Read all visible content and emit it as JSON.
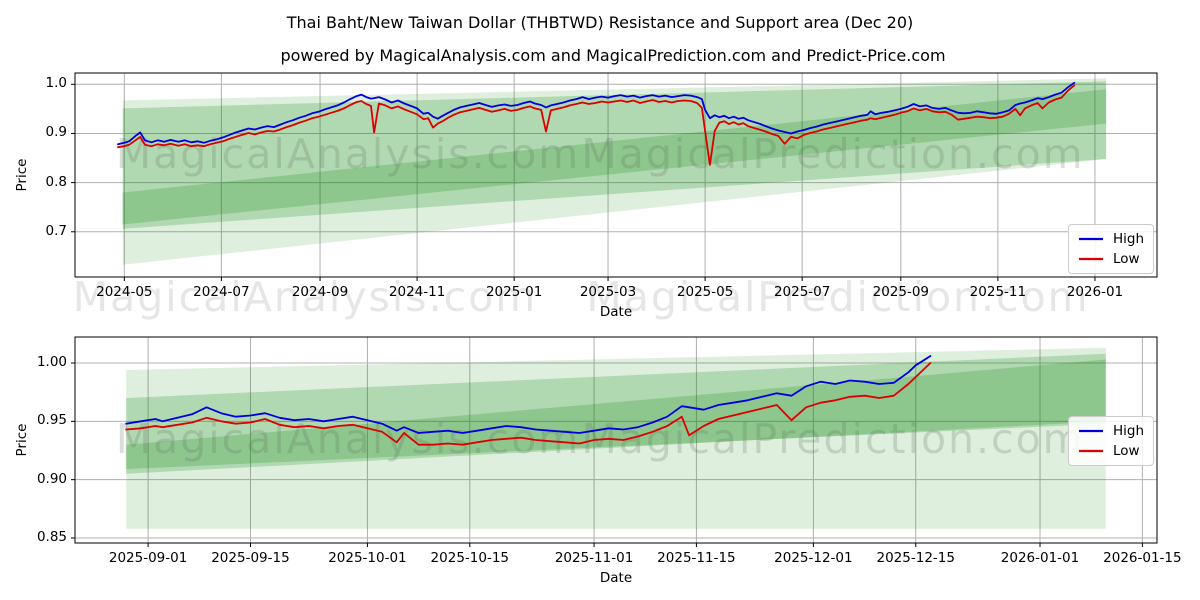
{
  "title": "Thai Baht/New Taiwan Dollar  (THBTWD) Resistance and Support area (Dec 20)",
  "subtitle": "powered by MagicalAnalysis.com and MagicalPrediction.com and Predict-Price.com",
  "watermarks": {
    "analysis": "MagicalAnalysis.com",
    "prediction": "MagicalPrediction.com"
  },
  "colors": {
    "high": "#0000dd",
    "low": "#dd0000",
    "band": "#008000",
    "grid": "#b0b0b0",
    "spine": "#000000",
    "text": "#000000"
  },
  "chart_data": [
    {
      "type": "line",
      "xlabel": "Date",
      "ylabel": "Price",
      "legend_location": "lower right",
      "grid": true,
      "x_range": [
        "2024-03-31",
        "2026-02-09"
      ],
      "y_range": [
        0.608,
        1.023
      ],
      "x_ticks": [
        {
          "date": "2024-05-01",
          "label": "2024-05"
        },
        {
          "date": "2024-07-01",
          "label": "2024-07"
        },
        {
          "date": "2024-09-01",
          "label": "2024-09"
        },
        {
          "date": "2024-11-01",
          "label": "2024-11"
        },
        {
          "date": "2025-01-01",
          "label": "2025-01"
        },
        {
          "date": "2025-03-01",
          "label": "2025-03"
        },
        {
          "date": "2025-05-01",
          "label": "2025-05"
        },
        {
          "date": "2025-07-01",
          "label": "2025-07"
        },
        {
          "date": "2025-09-01",
          "label": "2025-09"
        },
        {
          "date": "2025-11-01",
          "label": "2025-11"
        },
        {
          "date": "2026-01-01",
          "label": "2026-01"
        }
      ],
      "y_ticks": [
        {
          "value": 0.7,
          "label": "0.7"
        },
        {
          "value": 0.8,
          "label": "0.8"
        },
        {
          "value": 0.9,
          "label": "0.9"
        },
        {
          "value": 1.0,
          "label": "1.0"
        }
      ],
      "bands": [
        {
          "x0": "2024-04-30",
          "x1": "2026-01-08",
          "top": [
            0.967,
            1.012
          ],
          "bottom": [
            0.633,
            0.848
          ],
          "opacity": 0.13
        },
        {
          "x0": "2024-04-30",
          "x1": "2026-01-08",
          "top": [
            0.951,
            1.006
          ],
          "bottom": [
            0.706,
            0.848
          ],
          "opacity": 0.2
        },
        {
          "x0": "2024-04-30",
          "x1": "2026-01-08",
          "top": [
            0.78,
            0.99
          ],
          "bottom": [
            0.715,
            0.92
          ],
          "opacity": 0.2
        }
      ],
      "dates": [
        "2024-04-27",
        "2024-05-01",
        "2024-05-04",
        "2024-05-08",
        "2024-05-11",
        "2024-05-14",
        "2024-05-18",
        "2024-05-22",
        "2024-05-26",
        "2024-05-30",
        "2024-06-04",
        "2024-06-08",
        "2024-06-12",
        "2024-06-16",
        "2024-06-20",
        "2024-06-24",
        "2024-06-28",
        "2024-07-02",
        "2024-07-06",
        "2024-07-10",
        "2024-07-14",
        "2024-07-18",
        "2024-07-22",
        "2024-07-26",
        "2024-07-30",
        "2024-08-03",
        "2024-08-07",
        "2024-08-11",
        "2024-08-15",
        "2024-08-19",
        "2024-08-23",
        "2024-08-27",
        "2024-08-31",
        "2024-09-04",
        "2024-09-08",
        "2024-09-12",
        "2024-09-16",
        "2024-09-20",
        "2024-09-24",
        "2024-09-27",
        "2024-09-30",
        "2024-10-03",
        "2024-10-05",
        "2024-10-08",
        "2024-10-12",
        "2024-10-16",
        "2024-10-20",
        "2024-10-24",
        "2024-10-28",
        "2024-11-01",
        "2024-11-05",
        "2024-11-08",
        "2024-11-11",
        "2024-11-14",
        "2024-11-17",
        "2024-11-20",
        "2024-11-24",
        "2024-11-28",
        "2024-12-02",
        "2024-12-06",
        "2024-12-10",
        "2024-12-14",
        "2024-12-18",
        "2024-12-22",
        "2024-12-26",
        "2024-12-30",
        "2025-01-03",
        "2025-01-07",
        "2025-01-11",
        "2025-01-14",
        "2025-01-18",
        "2025-01-21",
        "2025-01-24",
        "2025-01-28",
        "2025-02-01",
        "2025-02-05",
        "2025-02-09",
        "2025-02-13",
        "2025-02-17",
        "2025-02-21",
        "2025-02-25",
        "2025-03-01",
        "2025-03-05",
        "2025-03-09",
        "2025-03-13",
        "2025-03-17",
        "2025-03-21",
        "2025-03-25",
        "2025-03-29",
        "2025-04-02",
        "2025-04-06",
        "2025-04-10",
        "2025-04-14",
        "2025-04-18",
        "2025-04-22",
        "2025-04-26",
        "2025-04-29",
        "2025-05-01",
        "2025-05-04",
        "2025-05-07",
        "2025-05-10",
        "2025-05-13",
        "2025-05-16",
        "2025-05-19",
        "2025-05-22",
        "2025-05-25",
        "2025-05-28",
        "2025-05-31",
        "2025-06-04",
        "2025-06-08",
        "2025-06-12",
        "2025-06-16",
        "2025-06-20",
        "2025-06-24",
        "2025-06-28",
        "2025-07-02",
        "2025-07-06",
        "2025-07-10",
        "2025-07-14",
        "2025-07-18",
        "2025-07-22",
        "2025-07-26",
        "2025-07-30",
        "2025-08-03",
        "2025-08-07",
        "2025-08-11",
        "2025-08-13",
        "2025-08-16",
        "2025-08-20",
        "2025-08-24",
        "2025-08-28",
        "2025-09-01",
        "2025-09-05",
        "2025-09-09",
        "2025-09-13",
        "2025-09-17",
        "2025-09-21",
        "2025-09-25",
        "2025-09-29",
        "2025-10-03",
        "2025-10-07",
        "2025-10-11",
        "2025-10-15",
        "2025-10-19",
        "2025-10-23",
        "2025-10-27",
        "2025-10-31",
        "2025-11-04",
        "2025-11-08",
        "2025-11-12",
        "2025-11-15",
        "2025-11-18",
        "2025-11-22",
        "2025-11-26",
        "2025-11-29",
        "2025-12-03",
        "2025-12-07",
        "2025-12-11",
        "2025-12-15",
        "2025-12-19"
      ],
      "series": [
        {
          "name": "High",
          "color": "#0000dd",
          "values": [
            0.878,
            0.881,
            0.884,
            0.895,
            0.902,
            0.886,
            0.882,
            0.886,
            0.883,
            0.887,
            0.883,
            0.886,
            0.882,
            0.884,
            0.881,
            0.885,
            0.888,
            0.892,
            0.897,
            0.902,
            0.906,
            0.91,
            0.908,
            0.912,
            0.915,
            0.913,
            0.918,
            0.923,
            0.927,
            0.932,
            0.936,
            0.941,
            0.944,
            0.949,
            0.953,
            0.957,
            0.963,
            0.97,
            0.976,
            0.979,
            0.974,
            0.971,
            0.972,
            0.974,
            0.969,
            0.963,
            0.967,
            0.961,
            0.956,
            0.951,
            0.94,
            0.942,
            0.934,
            0.93,
            0.936,
            0.941,
            0.948,
            0.953,
            0.956,
            0.959,
            0.962,
            0.958,
            0.954,
            0.957,
            0.959,
            0.956,
            0.958,
            0.962,
            0.965,
            0.961,
            0.958,
            0.953,
            0.957,
            0.96,
            0.963,
            0.967,
            0.97,
            0.974,
            0.97,
            0.973,
            0.975,
            0.973,
            0.976,
            0.978,
            0.975,
            0.977,
            0.973,
            0.976,
            0.978,
            0.975,
            0.977,
            0.974,
            0.976,
            0.978,
            0.977,
            0.974,
            0.97,
            0.948,
            0.931,
            0.937,
            0.933,
            0.936,
            0.931,
            0.934,
            0.93,
            0.932,
            0.927,
            0.924,
            0.92,
            0.915,
            0.91,
            0.906,
            0.903,
            0.9,
            0.904,
            0.907,
            0.911,
            0.914,
            0.918,
            0.921,
            0.924,
            0.927,
            0.93,
            0.933,
            0.936,
            0.938,
            0.945,
            0.939,
            0.942,
            0.944,
            0.947,
            0.95,
            0.954,
            0.96,
            0.955,
            0.957,
            0.952,
            0.95,
            0.952,
            0.947,
            0.942,
            0.941,
            0.942,
            0.945,
            0.943,
            0.941,
            0.94,
            0.943,
            0.947,
            0.958,
            0.961,
            0.963,
            0.967,
            0.972,
            0.97,
            0.974,
            0.979,
            0.983,
            0.994,
            1.003
          ]
        },
        {
          "name": "Low",
          "color": "#dd0000",
          "values": [
            0.872,
            0.874,
            0.877,
            0.886,
            0.893,
            0.877,
            0.874,
            0.878,
            0.876,
            0.879,
            0.875,
            0.878,
            0.874,
            0.876,
            0.874,
            0.878,
            0.881,
            0.884,
            0.889,
            0.893,
            0.897,
            0.901,
            0.898,
            0.902,
            0.905,
            0.904,
            0.908,
            0.913,
            0.917,
            0.922,
            0.926,
            0.931,
            0.934,
            0.938,
            0.942,
            0.946,
            0.951,
            0.958,
            0.964,
            0.966,
            0.96,
            0.956,
            0.902,
            0.961,
            0.957,
            0.951,
            0.955,
            0.949,
            0.944,
            0.939,
            0.929,
            0.931,
            0.912,
            0.92,
            0.925,
            0.931,
            0.938,
            0.943,
            0.946,
            0.949,
            0.952,
            0.948,
            0.944,
            0.947,
            0.95,
            0.946,
            0.948,
            0.952,
            0.955,
            0.951,
            0.948,
            0.904,
            0.947,
            0.95,
            0.953,
            0.957,
            0.96,
            0.963,
            0.96,
            0.962,
            0.965,
            0.963,
            0.965,
            0.967,
            0.964,
            0.967,
            0.962,
            0.965,
            0.968,
            0.964,
            0.966,
            0.963,
            0.966,
            0.967,
            0.966,
            0.962,
            0.952,
            0.905,
            0.836,
            0.905,
            0.922,
            0.925,
            0.919,
            0.923,
            0.918,
            0.921,
            0.915,
            0.912,
            0.908,
            0.904,
            0.899,
            0.895,
            0.879,
            0.893,
            0.89,
            0.897,
            0.901,
            0.904,
            0.908,
            0.911,
            0.914,
            0.917,
            0.92,
            0.923,
            0.926,
            0.928,
            0.931,
            0.929,
            0.932,
            0.935,
            0.938,
            0.942,
            0.945,
            0.951,
            0.947,
            0.95,
            0.945,
            0.943,
            0.944,
            0.938,
            0.928,
            0.93,
            0.932,
            0.934,
            0.933,
            0.931,
            0.932,
            0.934,
            0.94,
            0.95,
            0.937,
            0.951,
            0.957,
            0.962,
            0.951,
            0.963,
            0.969,
            0.973,
            0.987,
            0.998
          ]
        }
      ]
    },
    {
      "type": "line",
      "xlabel": "Date",
      "ylabel": "Price",
      "legend_location": "lower right",
      "grid": true,
      "x_range": [
        "2025-08-22",
        "2026-01-17"
      ],
      "y_range": [
        0.8457,
        1.0223
      ],
      "x_ticks": [
        {
          "date": "2025-09-01",
          "label": "2025-09-01"
        },
        {
          "date": "2025-09-15",
          "label": "2025-09-15"
        },
        {
          "date": "2025-10-01",
          "label": "2025-10-01"
        },
        {
          "date": "2025-10-15",
          "label": "2025-10-15"
        },
        {
          "date": "2025-11-01",
          "label": "2025-11-01"
        },
        {
          "date": "2025-11-15",
          "label": "2025-11-15"
        },
        {
          "date": "2025-12-01",
          "label": "2025-12-01"
        },
        {
          "date": "2025-12-15",
          "label": "2025-12-15"
        },
        {
          "date": "2026-01-01",
          "label": "2026-01-01"
        },
        {
          "date": "2026-01-15",
          "label": "2026-01-15"
        }
      ],
      "y_ticks": [
        {
          "value": 0.85,
          "label": "0.85"
        },
        {
          "value": 0.9,
          "label": "0.90"
        },
        {
          "value": 0.95,
          "label": "0.95"
        },
        {
          "value": 1.0,
          "label": "1.00"
        }
      ],
      "bands": [
        {
          "x0": "2025-08-29",
          "x1": "2026-01-10",
          "top": [
            0.994,
            1.013
          ],
          "bottom": [
            0.858,
            0.858
          ],
          "opacity": 0.13
        },
        {
          "x0": "2025-08-29",
          "x1": "2026-01-10",
          "top": [
            0.97,
            1.008
          ],
          "bottom": [
            0.909,
            0.948
          ],
          "opacity": 0.2
        },
        {
          "x0": "2025-08-29",
          "x1": "2026-01-10",
          "top": [
            0.93,
            1.003
          ],
          "bottom": [
            0.905,
            0.95
          ],
          "opacity": 0.2
        }
      ],
      "dates": [
        "2025-08-29",
        "2025-08-31",
        "2025-09-02",
        "2025-09-03",
        "2025-09-05",
        "2025-09-07",
        "2025-09-09",
        "2025-09-11",
        "2025-09-13",
        "2025-09-15",
        "2025-09-17",
        "2025-09-19",
        "2025-09-21",
        "2025-09-23",
        "2025-09-25",
        "2025-09-27",
        "2025-09-29",
        "2025-10-01",
        "2025-10-03",
        "2025-10-05",
        "2025-10-06",
        "2025-10-08",
        "2025-10-10",
        "2025-10-12",
        "2025-10-14",
        "2025-10-16",
        "2025-10-18",
        "2025-10-20",
        "2025-10-22",
        "2025-10-24",
        "2025-10-26",
        "2025-10-28",
        "2025-10-30",
        "2025-11-01",
        "2025-11-03",
        "2025-11-05",
        "2025-11-07",
        "2025-11-09",
        "2025-11-11",
        "2025-11-13",
        "2025-11-14",
        "2025-11-16",
        "2025-11-18",
        "2025-11-20",
        "2025-11-22",
        "2025-11-24",
        "2025-11-26",
        "2025-11-28",
        "2025-11-30",
        "2025-12-02",
        "2025-12-04",
        "2025-12-06",
        "2025-12-08",
        "2025-12-10",
        "2025-12-12",
        "2025-12-14",
        "2025-12-15",
        "2025-12-16",
        "2025-12-17"
      ],
      "series": [
        {
          "name": "High",
          "color": "#0000dd",
          "values": [
            0.948,
            0.95,
            0.952,
            0.95,
            0.953,
            0.956,
            0.962,
            0.957,
            0.954,
            0.955,
            0.957,
            0.953,
            0.951,
            0.952,
            0.95,
            0.952,
            0.954,
            0.951,
            0.948,
            0.942,
            0.945,
            0.94,
            0.941,
            0.942,
            0.94,
            0.942,
            0.944,
            0.946,
            0.945,
            0.943,
            0.942,
            0.941,
            0.94,
            0.942,
            0.944,
            0.943,
            0.945,
            0.949,
            0.954,
            0.963,
            0.962,
            0.96,
            0.964,
            0.966,
            0.968,
            0.971,
            0.974,
            0.972,
            0.98,
            0.984,
            0.982,
            0.985,
            0.984,
            0.982,
            0.983,
            0.992,
            0.998,
            1.002,
            1.006
          ]
        },
        {
          "name": "Low",
          "color": "#dd0000",
          "values": [
            0.943,
            0.944,
            0.946,
            0.945,
            0.947,
            0.949,
            0.953,
            0.95,
            0.948,
            0.949,
            0.952,
            0.947,
            0.945,
            0.946,
            0.944,
            0.946,
            0.947,
            0.944,
            0.941,
            0.932,
            0.94,
            0.93,
            0.93,
            0.931,
            0.93,
            0.932,
            0.934,
            0.935,
            0.936,
            0.934,
            0.933,
            0.932,
            0.931,
            0.934,
            0.935,
            0.934,
            0.937,
            0.941,
            0.946,
            0.954,
            0.938,
            0.946,
            0.952,
            0.955,
            0.958,
            0.961,
            0.964,
            0.951,
            0.962,
            0.966,
            0.968,
            0.971,
            0.972,
            0.97,
            0.972,
            0.982,
            0.988,
            0.994,
            1.0
          ]
        }
      ]
    }
  ]
}
